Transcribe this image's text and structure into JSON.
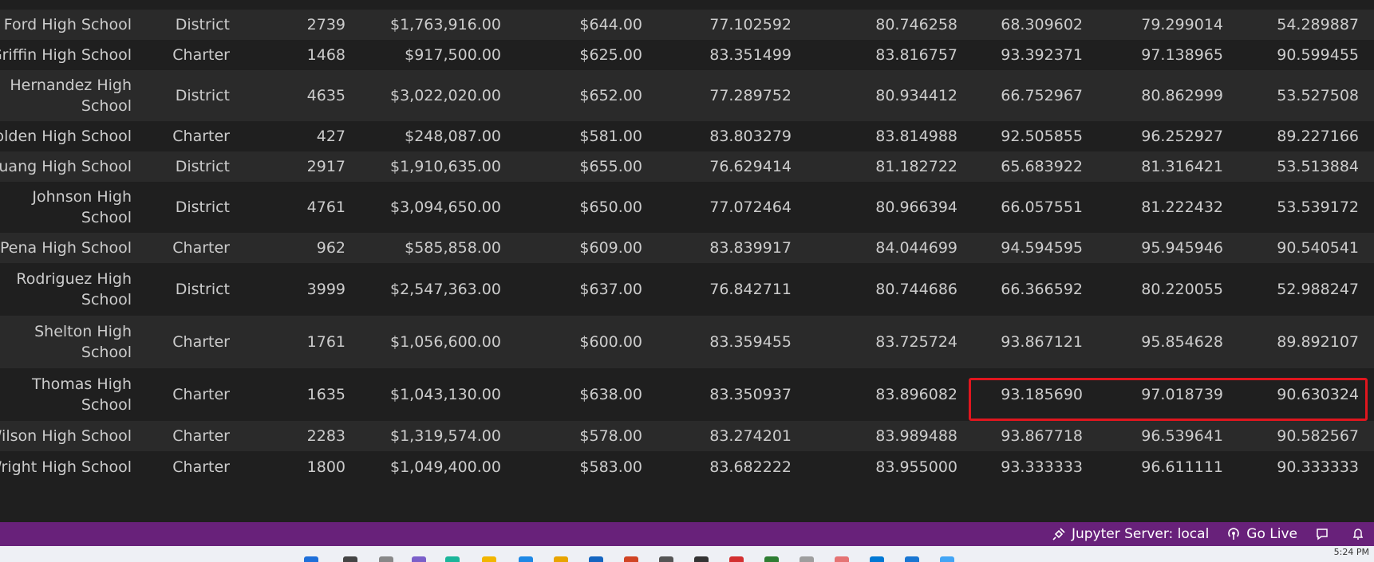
{
  "table": {
    "rows": [
      {
        "name": [
          "Ford High School"
        ],
        "type": "District",
        "size": "2739",
        "budget": "$1,763,916.00",
        "per_capita": "$644.00",
        "avg_math": "77.102592",
        "avg_reading": "80.746258",
        "pct_math": "68.309602",
        "pct_reading": "79.299014",
        "pct_overall": "54.289887"
      },
      {
        "name": [
          "Griffin High School"
        ],
        "type": "Charter",
        "size": "1468",
        "budget": "$917,500.00",
        "per_capita": "$625.00",
        "avg_math": "83.351499",
        "avg_reading": "83.816757",
        "pct_math": "93.392371",
        "pct_reading": "97.138965",
        "pct_overall": "90.599455"
      },
      {
        "name": [
          "Hernandez High",
          "School"
        ],
        "type": "District",
        "size": "4635",
        "budget": "$3,022,020.00",
        "per_capita": "$652.00",
        "avg_math": "77.289752",
        "avg_reading": "80.934412",
        "pct_math": "66.752967",
        "pct_reading": "80.862999",
        "pct_overall": "53.527508"
      },
      {
        "name": [
          "Holden High School"
        ],
        "type": "Charter",
        "size": "427",
        "budget": "$248,087.00",
        "per_capita": "$581.00",
        "avg_math": "83.803279",
        "avg_reading": "83.814988",
        "pct_math": "92.505855",
        "pct_reading": "96.252927",
        "pct_overall": "89.227166"
      },
      {
        "name": [
          "Huang High School"
        ],
        "type": "District",
        "size": "2917",
        "budget": "$1,910,635.00",
        "per_capita": "$655.00",
        "avg_math": "76.629414",
        "avg_reading": "81.182722",
        "pct_math": "65.683922",
        "pct_reading": "81.316421",
        "pct_overall": "53.513884"
      },
      {
        "name": [
          "Johnson High",
          "School"
        ],
        "type": "District",
        "size": "4761",
        "budget": "$3,094,650.00",
        "per_capita": "$650.00",
        "avg_math": "77.072464",
        "avg_reading": "80.966394",
        "pct_math": "66.057551",
        "pct_reading": "81.222432",
        "pct_overall": "53.539172"
      },
      {
        "name": [
          "Pena High School"
        ],
        "type": "Charter",
        "size": "962",
        "budget": "$585,858.00",
        "per_capita": "$609.00",
        "avg_math": "83.839917",
        "avg_reading": "84.044699",
        "pct_math": "94.594595",
        "pct_reading": "95.945946",
        "pct_overall": "90.540541"
      },
      {
        "name": [
          "Rodriguez High",
          "School"
        ],
        "type": "District",
        "size": "3999",
        "budget": "$2,547,363.00",
        "per_capita": "$637.00",
        "avg_math": "76.842711",
        "avg_reading": "80.744686",
        "pct_math": "66.366592",
        "pct_reading": "80.220055",
        "pct_overall": "52.988247"
      },
      {
        "name": [
          "Shelton High",
          "School"
        ],
        "type": "Charter",
        "size": "1761",
        "budget": "$1,056,600.00",
        "per_capita": "$600.00",
        "avg_math": "83.359455",
        "avg_reading": "83.725724",
        "pct_math": "93.867121",
        "pct_reading": "95.854628",
        "pct_overall": "89.892107"
      },
      {
        "name": [
          "Thomas High",
          "School"
        ],
        "type": "Charter",
        "size": "1635",
        "budget": "$1,043,130.00",
        "per_capita": "$638.00",
        "avg_math": "83.350937",
        "avg_reading": "83.896082",
        "pct_math": "93.185690",
        "pct_reading": "97.018739",
        "pct_overall": "90.630324"
      },
      {
        "name": [
          "Wilson High School"
        ],
        "type": "Charter",
        "size": "2283",
        "budget": "$1,319,574.00",
        "per_capita": "$578.00",
        "avg_math": "83.274201",
        "avg_reading": "83.989488",
        "pct_math": "93.867718",
        "pct_reading": "96.539641",
        "pct_overall": "90.582567"
      },
      {
        "name": [
          "Wright High School"
        ],
        "type": "Charter",
        "size": "1800",
        "budget": "$1,049,400.00",
        "per_capita": "$583.00",
        "avg_math": "83.682222",
        "avg_reading": "83.955000",
        "pct_math": "93.333333",
        "pct_reading": "96.611111",
        "pct_overall": "90.333333"
      }
    ]
  },
  "status_bar": {
    "jupyter": "Jupyter Server: local",
    "go_live": "Go Live"
  },
  "taskbar": {
    "clock": "5:24 PM"
  },
  "colors": {
    "status_bar": "#68217a",
    "highlight": "#e0161e"
  }
}
